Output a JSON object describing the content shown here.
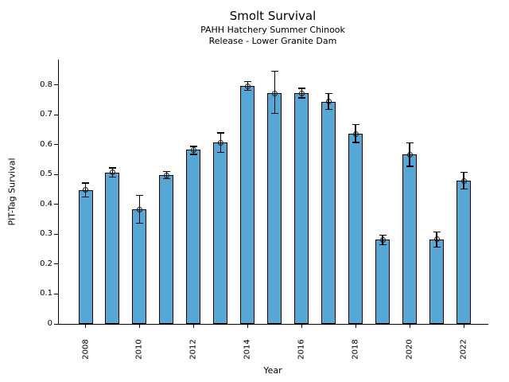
{
  "chart_data": {
    "type": "bar",
    "title": "Smolt Survival",
    "subtitle_line1": "PAHH Hatchery Summer Chinook",
    "subtitle_line2": "Release - Lower Granite Dam",
    "xlabel": "Year",
    "ylabel": "PIT-Tag Survival",
    "categories": [
      2008,
      2009,
      2010,
      2011,
      2012,
      2013,
      2014,
      2015,
      2016,
      2017,
      2018,
      2019,
      2020,
      2021,
      2022
    ],
    "values": [
      0.448,
      0.507,
      0.383,
      0.498,
      0.583,
      0.607,
      0.797,
      0.772,
      0.773,
      0.745,
      0.637,
      0.282,
      0.567,
      0.284,
      0.479
    ],
    "error_low": [
      0.425,
      0.492,
      0.338,
      0.486,
      0.568,
      0.574,
      0.783,
      0.705,
      0.757,
      0.719,
      0.608,
      0.266,
      0.528,
      0.258,
      0.452
    ],
    "error_high": [
      0.472,
      0.522,
      0.43,
      0.511,
      0.595,
      0.64,
      0.812,
      0.846,
      0.789,
      0.772,
      0.668,
      0.298,
      0.606,
      0.308,
      0.508
    ],
    "yticks": [
      0,
      0.1,
      0.2,
      0.3,
      0.4,
      0.5,
      0.6,
      0.7,
      0.8
    ],
    "ytick_labels": [
      "0",
      "0.1",
      "0.2",
      "0.3",
      "0.4",
      "0.5",
      "0.6",
      "0.7",
      "0.8"
    ],
    "xtick_label_years": [
      2008,
      2010,
      2012,
      2014,
      2016,
      2018,
      2020,
      2022
    ],
    "ylim": [
      0,
      0.885
    ],
    "grid": false,
    "legend": "none",
    "bar_color": "#57a7d6",
    "bar_edge_color": "#000000",
    "error_color": "#000000",
    "marker": "open-circle"
  }
}
